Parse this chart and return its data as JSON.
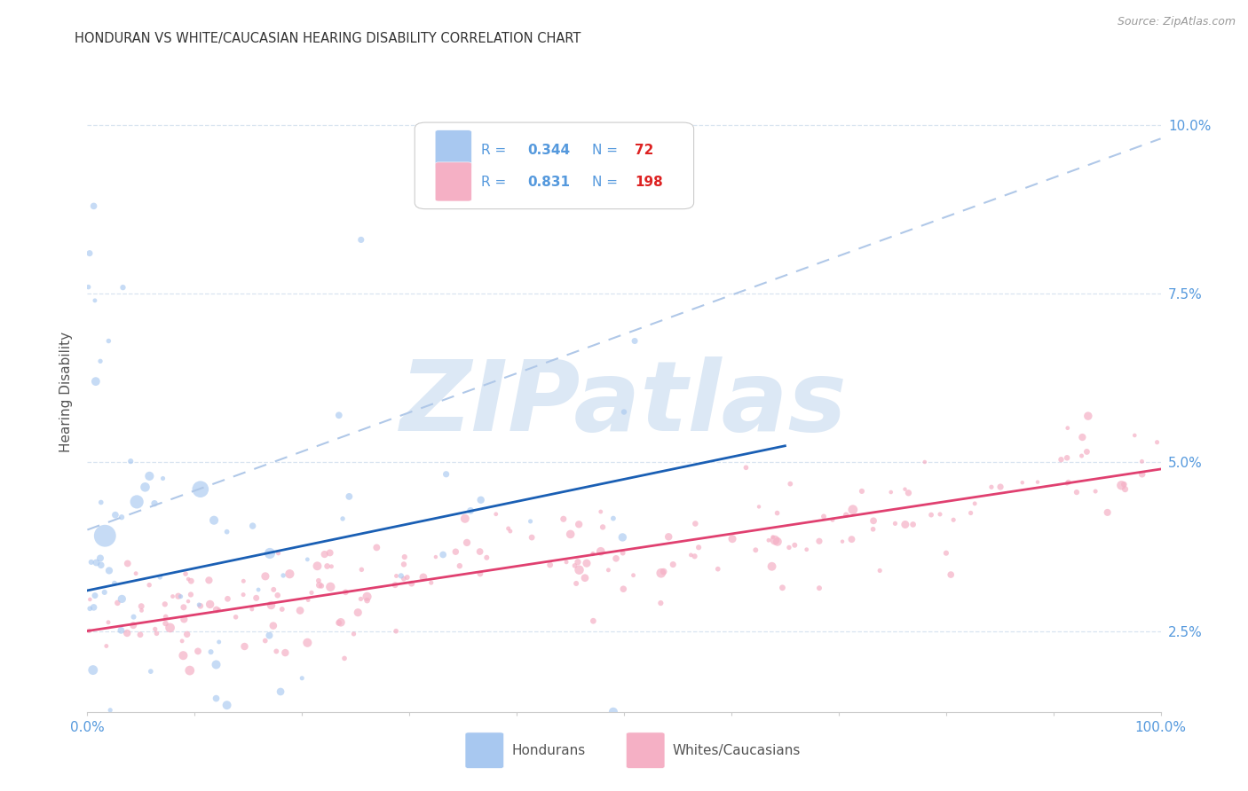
{
  "title": "HONDURAN VS WHITE/CAUCASIAN HEARING DISABILITY CORRELATION CHART",
  "source": "Source: ZipAtlas.com",
  "ylabel": "Hearing Disability",
  "yticks": [
    0.025,
    0.05,
    0.075,
    0.1
  ],
  "ytick_labels": [
    "2.5%",
    "5.0%",
    "7.5%",
    "10.0%"
  ],
  "xlim": [
    0.0,
    1.0
  ],
  "ylim": [
    0.013,
    0.108
  ],
  "honduran_color": "#a8c8f0",
  "caucasian_color": "#f5b0c5",
  "trend_blue": "#1a5fb4",
  "trend_pink": "#e04070",
  "trend_dashed": "#b0c8e8",
  "background_color": "#ffffff",
  "watermark_color": "#dce8f5",
  "axis_tick_color": "#5599dd",
  "grid_color": "#d8e4f0",
  "legend_r_color": "#5599dd",
  "legend_n_color": "#dd2222",
  "legend_val_color": "#5599dd",
  "title_color": "#333333",
  "source_color": "#999999",
  "ylabel_color": "#555555"
}
